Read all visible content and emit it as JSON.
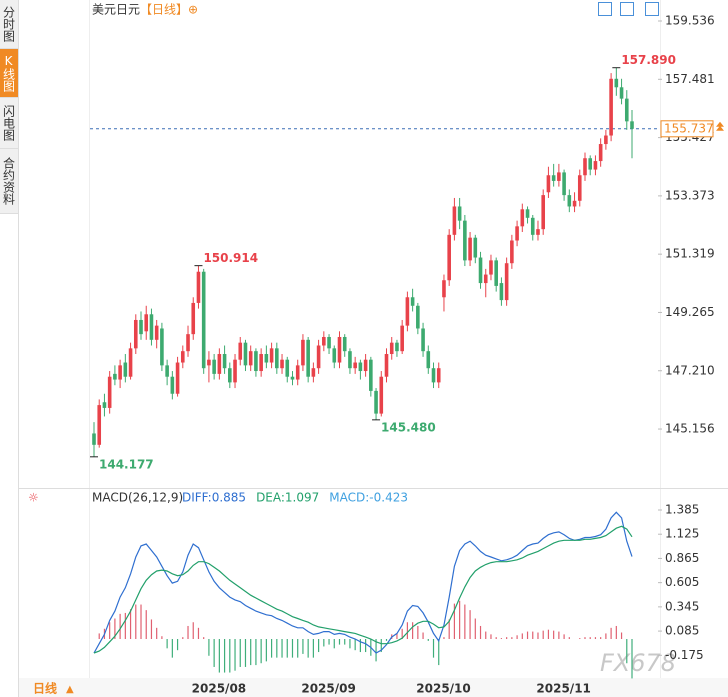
{
  "header": {
    "symbol": "美元日元",
    "period": "【日线】"
  },
  "tabs": [
    "分时图",
    "K线图",
    "闪电图",
    "合约资料"
  ],
  "footer_period": "日线",
  "watermark": "FX678",
  "chart_data": [
    {
      "type": "candlestick",
      "categories": [
        null,
        null,
        null,
        null,
        null,
        null,
        null,
        null,
        null,
        null,
        null,
        null,
        null,
        null,
        null,
        null,
        null,
        null,
        null,
        null,
        null,
        null,
        "2025/08",
        null,
        null,
        null,
        null,
        null,
        null,
        null,
        null,
        null,
        null,
        null,
        null,
        null,
        null,
        null,
        null,
        null,
        null,
        null,
        null,
        "2025/09",
        null,
        null,
        null,
        null,
        null,
        null,
        null,
        null,
        null,
        null,
        null,
        null,
        null,
        null,
        null,
        null,
        null,
        null,
        null,
        null,
        null,
        "2025/10",
        null,
        null,
        null,
        null,
        null,
        null,
        null,
        null,
        null,
        null,
        null,
        null,
        null,
        null,
        null,
        null,
        null,
        null,
        null,
        null,
        null,
        null,
        "2025/11",
        null,
        null,
        null,
        null,
        null,
        null,
        null,
        null,
        null,
        null,
        null,
        null,
        null,
        null,
        null
      ],
      "candles": [
        [
          145.0,
          145.4,
          144.177,
          144.6
        ],
        [
          144.6,
          146.2,
          144.5,
          146.0
        ],
        [
          146.1,
          146.4,
          145.6,
          145.9
        ],
        [
          145.9,
          147.2,
          145.7,
          147.0
        ],
        [
          147.1,
          147.4,
          146.7,
          146.9
        ],
        [
          146.9,
          147.6,
          146.6,
          147.4
        ],
        [
          147.5,
          147.8,
          146.8,
          147.0
        ],
        [
          147.0,
          148.2,
          146.9,
          148.0
        ],
        [
          148.0,
          149.2,
          147.8,
          149.0
        ],
        [
          149.0,
          149.3,
          148.3,
          148.5
        ],
        [
          148.6,
          149.5,
          148.3,
          149.2
        ],
        [
          149.2,
          149.4,
          148.1,
          148.3
        ],
        [
          148.3,
          149.0,
          148.0,
          148.8
        ],
        [
          148.7,
          148.9,
          147.2,
          147.4
        ],
        [
          147.4,
          147.6,
          146.7,
          147.0
        ],
        [
          147.0,
          147.2,
          146.2,
          146.4
        ],
        [
          146.4,
          147.7,
          146.3,
          147.5
        ],
        [
          147.5,
          148.1,
          147.3,
          147.9
        ],
        [
          147.9,
          148.8,
          147.7,
          148.5
        ],
        [
          148.5,
          149.8,
          148.3,
          149.6
        ],
        [
          149.6,
          150.914,
          149.4,
          150.7
        ],
        [
          150.7,
          150.8,
          147.1,
          147.3
        ],
        [
          147.4,
          147.9,
          146.8,
          147.6
        ],
        [
          147.6,
          147.8,
          146.9,
          147.1
        ],
        [
          147.1,
          148.0,
          146.9,
          147.8
        ],
        [
          147.8,
          148.1,
          147.1,
          147.3
        ],
        [
          147.3,
          147.5,
          146.6,
          146.8
        ],
        [
          146.8,
          147.8,
          146.6,
          147.6
        ],
        [
          147.6,
          148.4,
          147.4,
          148.2
        ],
        [
          148.2,
          148.3,
          147.2,
          147.4
        ],
        [
          147.4,
          148.1,
          147.2,
          147.9
        ],
        [
          147.9,
          148.0,
          147.0,
          147.2
        ],
        [
          147.2,
          148.0,
          147.0,
          147.8
        ],
        [
          147.8,
          148.1,
          147.3,
          147.5
        ],
        [
          147.5,
          148.2,
          147.3,
          148.0
        ],
        [
          148.0,
          148.2,
          147.1,
          147.3
        ],
        [
          147.3,
          147.8,
          147.1,
          147.6
        ],
        [
          147.6,
          147.7,
          146.8,
          147.0
        ],
        [
          147.0,
          147.2,
          146.7,
          146.9
        ],
        [
          146.9,
          147.6,
          146.7,
          147.4
        ],
        [
          147.4,
          148.5,
          147.2,
          148.3
        ],
        [
          148.3,
          148.4,
          146.8,
          147.0
        ],
        [
          147.0,
          147.5,
          146.8,
          147.3
        ],
        [
          147.3,
          148.3,
          147.1,
          148.1
        ],
        [
          148.1,
          148.6,
          147.9,
          148.4
        ],
        [
          148.4,
          148.5,
          147.8,
          148.0
        ],
        [
          148.0,
          148.1,
          147.3,
          147.5
        ],
        [
          147.5,
          148.6,
          147.3,
          148.4
        ],
        [
          148.4,
          148.5,
          147.7,
          147.9
        ],
        [
          147.9,
          148.0,
          147.1,
          147.3
        ],
        [
          147.3,
          147.7,
          147.1,
          147.5
        ],
        [
          147.5,
          147.6,
          146.9,
          147.2
        ],
        [
          147.2,
          147.8,
          147.0,
          147.6
        ],
        [
          147.6,
          147.7,
          146.3,
          146.5
        ],
        [
          146.5,
          146.6,
          145.48,
          145.7
        ],
        [
          145.7,
          147.2,
          145.6,
          147.0
        ],
        [
          147.0,
          148.0,
          146.8,
          147.8
        ],
        [
          147.8,
          148.4,
          147.6,
          148.2
        ],
        [
          148.2,
          148.3,
          147.7,
          147.9
        ],
        [
          147.9,
          149.0,
          147.8,
          148.8
        ],
        [
          148.8,
          150.0,
          148.6,
          149.8
        ],
        [
          149.8,
          150.1,
          149.3,
          149.5
        ],
        [
          149.5,
          149.6,
          148.5,
          148.7
        ],
        [
          148.7,
          148.9,
          147.7,
          147.9
        ],
        [
          147.9,
          148.1,
          147.1,
          147.3
        ],
        [
          147.3,
          147.5,
          146.6,
          146.8
        ],
        [
          146.8,
          147.5,
          146.6,
          147.3
        ],
        [
          149.8,
          150.6,
          149.3,
          150.4
        ],
        [
          150.4,
          152.2,
          150.2,
          152.0
        ],
        [
          152.0,
          153.3,
          151.8,
          153.0
        ],
        [
          153.0,
          153.3,
          152.2,
          152.5
        ],
        [
          152.5,
          152.7,
          150.9,
          151.1
        ],
        [
          151.1,
          152.1,
          150.9,
          151.9
        ],
        [
          151.9,
          152.0,
          151.0,
          151.2
        ],
        [
          151.2,
          151.4,
          150.1,
          150.3
        ],
        [
          150.3,
          150.8,
          149.8,
          150.6
        ],
        [
          150.6,
          151.3,
          150.4,
          151.1
        ],
        [
          151.1,
          151.2,
          150.0,
          150.2
        ],
        [
          150.3,
          150.5,
          149.5,
          149.7
        ],
        [
          149.7,
          151.2,
          149.5,
          151.0
        ],
        [
          151.0,
          152.0,
          150.8,
          151.8
        ],
        [
          151.8,
          152.5,
          151.6,
          152.3
        ],
        [
          152.3,
          153.1,
          152.1,
          152.9
        ],
        [
          152.9,
          153.0,
          152.4,
          152.6
        ],
        [
          152.6,
          152.7,
          151.8,
          152.0
        ],
        [
          152.0,
          152.5,
          151.8,
          152.2
        ],
        [
          152.2,
          153.6,
          152.0,
          153.4
        ],
        [
          153.5,
          154.4,
          153.3,
          154.1
        ],
        [
          154.1,
          154.5,
          153.7,
          153.9
        ],
        [
          153.9,
          154.5,
          153.7,
          154.2
        ],
        [
          154.2,
          154.3,
          153.2,
          153.4
        ],
        [
          153.4,
          153.6,
          152.8,
          153.0
        ],
        [
          153.0,
          153.5,
          152.8,
          153.2
        ],
        [
          153.2,
          154.3,
          153.0,
          154.1
        ],
        [
          154.1,
          154.9,
          153.9,
          154.7
        ],
        [
          154.7,
          154.8,
          154.1,
          154.3
        ],
        [
          154.3,
          154.8,
          154.1,
          154.6
        ],
        [
          154.6,
          155.4,
          154.4,
          155.2
        ],
        [
          155.2,
          155.7,
          155.0,
          155.5
        ],
        [
          155.5,
          157.7,
          155.3,
          157.5
        ],
        [
          157.5,
          157.89,
          156.9,
          157.2
        ],
        [
          157.2,
          157.5,
          156.6,
          156.8
        ],
        [
          156.8,
          157.1,
          155.7,
          156.0
        ],
        [
          156.0,
          156.4,
          154.7,
          155.737
        ]
      ],
      "up_color": "#e8424a",
      "down_color": "#3daa6f",
      "ylim": [
        143.36,
        160.1
      ],
      "yticks": [
        {
          "value": 145.156,
          "label": "145.156"
        },
        {
          "value": 147.21,
          "label": "147.210"
        },
        149.265,
        151.319,
        153.373,
        155.427,
        157.481,
        159.536
      ],
      "last_price": 155.737,
      "last_color": "#f08a24",
      "annotations": [
        {
          "value": 157.89,
          "label": "157.890"
        },
        {
          "value": 150.914,
          "label": "150.914"
        },
        {
          "value": 145.48,
          "label": "145.480"
        },
        {
          "value": 144.177,
          "label": "144.177"
        }
      ],
      "high_color": "#e8424a",
      "low_color": "#3daa6f"
    },
    {
      "type": "macd",
      "title": "MACD(26,12,9)",
      "ylim": [
        -0.44,
        1.46
      ],
      "yticks": [
        -0.175,
        0.085,
        0.345,
        0.605,
        0.865,
        1.125,
        1.385
      ],
      "up_color": "#e06070",
      "down_color": "#3fae7a",
      "series": [
        {
          "name": "DIFF:0.885",
          "color": "#2f6fd0",
          "values": [
            -0.15,
            -0.05,
            0.05,
            0.2,
            0.3,
            0.45,
            0.55,
            0.7,
            0.88,
            1.0,
            1.02,
            0.95,
            0.88,
            0.78,
            0.68,
            0.6,
            0.62,
            0.72,
            0.9,
            1.02,
            0.98,
            0.85,
            0.72,
            0.62,
            0.55,
            0.5,
            0.45,
            0.42,
            0.4,
            0.36,
            0.33,
            0.3,
            0.28,
            0.26,
            0.25,
            0.22,
            0.2,
            0.17,
            0.14,
            0.12,
            0.12,
            0.08,
            0.05,
            0.06,
            0.08,
            0.08,
            0.05,
            0.06,
            0.05,
            0.02,
            0,
            -0.03,
            -0.05,
            -0.09,
            -0.15,
            -0.12,
            -0.06,
            0.02,
            0.06,
            0.15,
            0.3,
            0.36,
            0.35,
            0.28,
            0.18,
            0.06,
            -0.02,
            0.15,
            0.45,
            0.78,
            0.95,
            1.02,
            1.05,
            1.0,
            0.94,
            0.9,
            0.88,
            0.86,
            0.84,
            0.85,
            0.87,
            0.9,
            0.95,
            1.0,
            1.02,
            1.03,
            1.08,
            1.12,
            1.14,
            1.15,
            1.12,
            1.08,
            1.06,
            1.07,
            1.09,
            1.09,
            1.1,
            1.12,
            1.18,
            1.3,
            1.36,
            1.3,
            1.05,
            0.885
          ]
        },
        {
          "name": "DEA:1.097",
          "color": "#22a06b",
          "values": [
            -0.15,
            -0.13,
            -0.09,
            -0.03,
            0.03,
            0.11,
            0.2,
            0.3,
            0.42,
            0.54,
            0.63,
            0.69,
            0.73,
            0.74,
            0.73,
            0.7,
            0.68,
            0.69,
            0.73,
            0.79,
            0.83,
            0.83,
            0.81,
            0.77,
            0.73,
            0.68,
            0.63,
            0.59,
            0.55,
            0.51,
            0.47,
            0.44,
            0.41,
            0.38,
            0.35,
            0.32,
            0.3,
            0.27,
            0.24,
            0.22,
            0.2,
            0.18,
            0.15,
            0.13,
            0.12,
            0.11,
            0.1,
            0.09,
            0.08,
            0.07,
            0.06,
            0.04,
            0.02,
            0,
            -0.03,
            -0.05,
            -0.05,
            -0.04,
            -0.02,
            0.01,
            0.07,
            0.13,
            0.17,
            0.19,
            0.19,
            0.16,
            0.12,
            0.13,
            0.19,
            0.31,
            0.44,
            0.56,
            0.66,
            0.73,
            0.77,
            0.8,
            0.82,
            0.83,
            0.83,
            0.83,
            0.84,
            0.85,
            0.87,
            0.9,
            0.92,
            0.94,
            0.97,
            1.0,
            1.03,
            1.05,
            1.06,
            1.06,
            1.06,
            1.06,
            1.07,
            1.07,
            1.08,
            1.09,
            1.11,
            1.15,
            1.19,
            1.21,
            1.18,
            1.097
          ]
        },
        {
          "name": "MACD:-0.423",
          "color": "#3fa0e0",
          "values": [
            0,
            0.06,
            0.11,
            0.18,
            0.22,
            0.27,
            0.28,
            0.32,
            0.37,
            0.37,
            0.31,
            0.21,
            0.12,
            0.03,
            -0.1,
            -0.2,
            -0.12,
            0.02,
            0.14,
            0.18,
            0.12,
            0.02,
            -0.18,
            -0.3,
            -0.36,
            -0.36,
            -0.36,
            -0.34,
            -0.3,
            -0.3,
            -0.28,
            -0.28,
            -0.26,
            -0.24,
            -0.2,
            -0.2,
            -0.2,
            -0.2,
            -0.2,
            -0.2,
            -0.16,
            -0.2,
            -0.2,
            -0.14,
            -0.08,
            -0.06,
            -0.1,
            -0.06,
            -0.06,
            -0.1,
            -0.12,
            -0.14,
            -0.14,
            -0.18,
            -0.24,
            -0.14,
            -0.02,
            0.05,
            0.06,
            0.11,
            0.18,
            0.18,
            0.14,
            0.07,
            -0.02,
            -0.2,
            -0.28,
            0.02,
            0.21,
            0.38,
            0.41,
            0.37,
            0.31,
            0.22,
            0.14,
            0.08,
            0.05,
            0.02,
            0.01,
            0.02,
            0.02,
            0.04,
            0.06,
            0.08,
            0.08,
            0.07,
            0.09,
            0.1,
            0.09,
            0.08,
            0.05,
            0.02,
            0,
            0.01,
            0.02,
            0.02,
            0.02,
            0.02,
            0.06,
            0.12,
            0.14,
            0.07,
            -0.26,
            -0.423
          ]
        }
      ]
    }
  ]
}
